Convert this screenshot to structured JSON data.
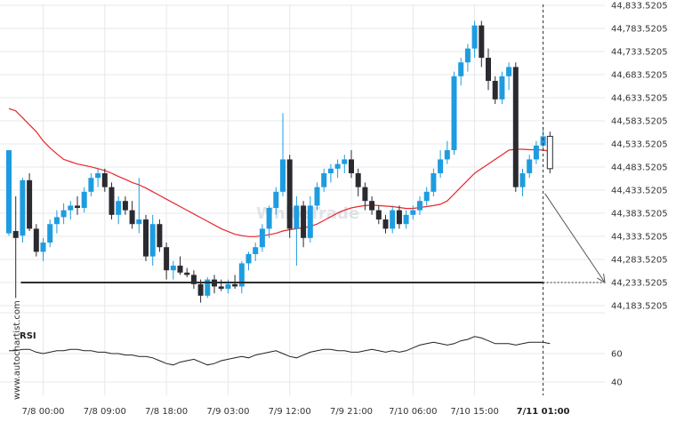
{
  "watermark": "WhiteTrade",
  "side_label": "www.autochartist.com",
  "chart_data": {
    "type": "candlestick",
    "title": "",
    "xlabel": "",
    "ylabel": "",
    "ylim": [
      44150,
      44840
    ],
    "price_ticks": [
      44833.5205,
      44783.5205,
      44733.5205,
      44683.5205,
      44633.5205,
      44583.5205,
      44533.5205,
      44483.5205,
      44433.5205,
      44383.5205,
      44333.5205,
      44283.5205,
      44233.5205,
      44183.5205
    ],
    "price_tick_labels": [
      "44,833.5205",
      "44,783.5205",
      "44,733.5205",
      "44,683.5205",
      "44,633.5205",
      "44,583.5205",
      "44,533.5205",
      "44,483.5205",
      "44,433.5205",
      "44,383.5205",
      "44,333.5205",
      "44,283.5205",
      "44,233.5205",
      "44,183.5205"
    ],
    "time_ticks": [
      {
        "label": "7/8 00:00",
        "bar": 5,
        "bold": false
      },
      {
        "label": "7/8 09:00",
        "bar": 14,
        "bold": false
      },
      {
        "label": "7/8 18:00",
        "bar": 23,
        "bold": false
      },
      {
        "label": "7/9 03:00",
        "bar": 32,
        "bold": false
      },
      {
        "label": "7/9 12:00",
        "bar": 41,
        "bold": false
      },
      {
        "label": "7/9 21:00",
        "bar": 50,
        "bold": false
      },
      {
        "label": "7/10 06:00",
        "bar": 59,
        "bold": false
      },
      {
        "label": "7/10 15:00",
        "bar": 68,
        "bold": false
      },
      {
        "label": "7/11 01:00",
        "bar": 78,
        "bold": true
      }
    ],
    "colors": {
      "up": "#1e9ce0",
      "down": "#2a2a30",
      "ma": "#e8262b",
      "level": "#2d2d2d",
      "projection": "#555555",
      "rsi": "#222222",
      "grid": "#e6e8eb"
    },
    "candles": [
      [
        44340,
        44520,
        44335,
        44520
      ],
      [
        44345,
        44420,
        44200,
        44330
      ],
      [
        44335,
        44460,
        44320,
        44455
      ],
      [
        44455,
        44470,
        44345,
        44350
      ],
      [
        44350,
        44360,
        44290,
        44300
      ],
      [
        44300,
        44330,
        44280,
        44320
      ],
      [
        44320,
        44370,
        44310,
        44360
      ],
      [
        44360,
        44390,
        44340,
        44375
      ],
      [
        44375,
        44405,
        44360,
        44390
      ],
      [
        44390,
        44410,
        44370,
        44400
      ],
      [
        44400,
        44420,
        44380,
        44395
      ],
      [
        44395,
        44440,
        44385,
        44430
      ],
      [
        44430,
        44470,
        44420,
        44460
      ],
      [
        44460,
        44480,
        44440,
        44470
      ],
      [
        44470,
        44480,
        44430,
        44440
      ],
      [
        44440,
        44450,
        44370,
        44380
      ],
      [
        44380,
        44420,
        44360,
        44410
      ],
      [
        44410,
        44420,
        44380,
        44390
      ],
      [
        44390,
        44410,
        44350,
        44360
      ],
      [
        44360,
        44460,
        44340,
        44370
      ],
      [
        44370,
        44380,
        44280,
        44290
      ],
      [
        44290,
        44380,
        44270,
        44360
      ],
      [
        44360,
        44370,
        44300,
        44310
      ],
      [
        44310,
        44320,
        44240,
        44260
      ],
      [
        44260,
        44280,
        44240,
        44270
      ],
      [
        44270,
        44290,
        44250,
        44255
      ],
      [
        44255,
        44265,
        44245,
        44250
      ],
      [
        44250,
        44260,
        44220,
        44230
      ],
      [
        44230,
        44240,
        44190,
        44205
      ],
      [
        44205,
        44245,
        44200,
        44240
      ],
      [
        44240,
        44250,
        44210,
        44225
      ],
      [
        44225,
        44240,
        44215,
        44220
      ],
      [
        44220,
        44240,
        44210,
        44230
      ],
      [
        44230,
        44250,
        44220,
        44225
      ],
      [
        44225,
        44280,
        44210,
        44275
      ],
      [
        44275,
        44300,
        44260,
        44295
      ],
      [
        44295,
        44320,
        44280,
        44310
      ],
      [
        44310,
        44360,
        44300,
        44350
      ],
      [
        44350,
        44400,
        44330,
        44395
      ],
      [
        44395,
        44440,
        44380,
        44430
      ],
      [
        44430,
        44600,
        44420,
        44500
      ],
      [
        44500,
        44510,
        44330,
        44350
      ],
      [
        44350,
        44420,
        44270,
        44400
      ],
      [
        44400,
        44410,
        44310,
        44330
      ],
      [
        44330,
        44420,
        44320,
        44400
      ],
      [
        44400,
        44450,
        44390,
        44440
      ],
      [
        44440,
        44480,
        44430,
        44470
      ],
      [
        44470,
        44490,
        44450,
        44480
      ],
      [
        44480,
        44500,
        44460,
        44490
      ],
      [
        44490,
        44510,
        44470,
        44500
      ],
      [
        44500,
        44520,
        44460,
        44470
      ],
      [
        44470,
        44480,
        44420,
        44440
      ],
      [
        44440,
        44450,
        44390,
        44410
      ],
      [
        44410,
        44420,
        44380,
        44390
      ],
      [
        44390,
        44400,
        44360,
        44370
      ],
      [
        44370,
        44380,
        44340,
        44350
      ],
      [
        44350,
        44400,
        44340,
        44390
      ],
      [
        44390,
        44400,
        44350,
        44360
      ],
      [
        44360,
        44390,
        44350,
        44380
      ],
      [
        44380,
        44400,
        44370,
        44390
      ],
      [
        44390,
        44420,
        44380,
        44410
      ],
      [
        44410,
        44440,
        44400,
        44430
      ],
      [
        44430,
        44480,
        44420,
        44470
      ],
      [
        44470,
        44520,
        44460,
        44500
      ],
      [
        44500,
        44540,
        44490,
        44520
      ],
      [
        44520,
        44690,
        44510,
        44680
      ],
      [
        44680,
        44720,
        44660,
        44710
      ],
      [
        44710,
        44750,
        44690,
        44740
      ],
      [
        44740,
        44800,
        44720,
        44790
      ],
      [
        44790,
        44800,
        44700,
        44720
      ],
      [
        44720,
        44740,
        44650,
        44670
      ],
      [
        44670,
        44680,
        44620,
        44630
      ],
      [
        44630,
        44690,
        44620,
        44680
      ],
      [
        44680,
        44710,
        44650,
        44700
      ],
      [
        44700,
        44710,
        44430,
        44440
      ],
      [
        44440,
        44480,
        44420,
        44470
      ],
      [
        44470,
        44510,
        44460,
        44500
      ],
      [
        44500,
        44540,
        44490,
        44530
      ],
      [
        44530,
        44570,
        44520,
        44550
      ],
      [
        44550,
        44560,
        44470,
        44480
      ]
    ],
    "moving_average": [
      44610,
      44605,
      44590,
      44575,
      44560,
      44540,
      44525,
      44512,
      44500,
      44495,
      44490,
      44487,
      44484,
      44480,
      44476,
      44470,
      44463,
      44457,
      44450,
      44445,
      44438,
      44430,
      44422,
      44414,
      44406,
      44398,
      44390,
      44382,
      44374,
      44366,
      44358,
      44350,
      44344,
      44338,
      44335,
      44333,
      44333,
      44335,
      44337,
      44340,
      44345,
      44348,
      44350,
      44352,
      44355,
      44360,
      44368,
      44376,
      44384,
      44390,
      44395,
      44398,
      44400,
      44401,
      44400,
      44399,
      44398,
      44396,
      44394,
      44394,
      44396,
      44398,
      44400,
      44403,
      44410,
      44425,
      44440,
      44455,
      44470,
      44480,
      44490,
      44500,
      44510,
      44520,
      44522,
      44522,
      44521,
      44521,
      44520,
      44518
    ],
    "support_level": {
      "value": 44233.5205,
      "label": "44,233.5205",
      "from_bar": 2
    },
    "projection": {
      "from_bar": 78,
      "from_value": 44430,
      "to_value": 44233.5205
    },
    "rsi": {
      "label": "RSI",
      "ylim": [
        30,
        80
      ],
      "ticks": [
        60,
        40
      ],
      "values": [
        62,
        62,
        63,
        63,
        61,
        60,
        61,
        62,
        62,
        63,
        63,
        62,
        62,
        61,
        61,
        60,
        60,
        59,
        59,
        58,
        58,
        57,
        55,
        53,
        52,
        54,
        55,
        56,
        54,
        52,
        53,
        55,
        56,
        57,
        58,
        57,
        59,
        60,
        61,
        62,
        60,
        58,
        57,
        59,
        61,
        62,
        63,
        63,
        62,
        62,
        61,
        61,
        62,
        63,
        62,
        61,
        62,
        61,
        62,
        64,
        66,
        67,
        68,
        67,
        66,
        67,
        69,
        70,
        72,
        71,
        69,
        67,
        67,
        67,
        66,
        67,
        68,
        68,
        68,
        67
      ]
    }
  }
}
